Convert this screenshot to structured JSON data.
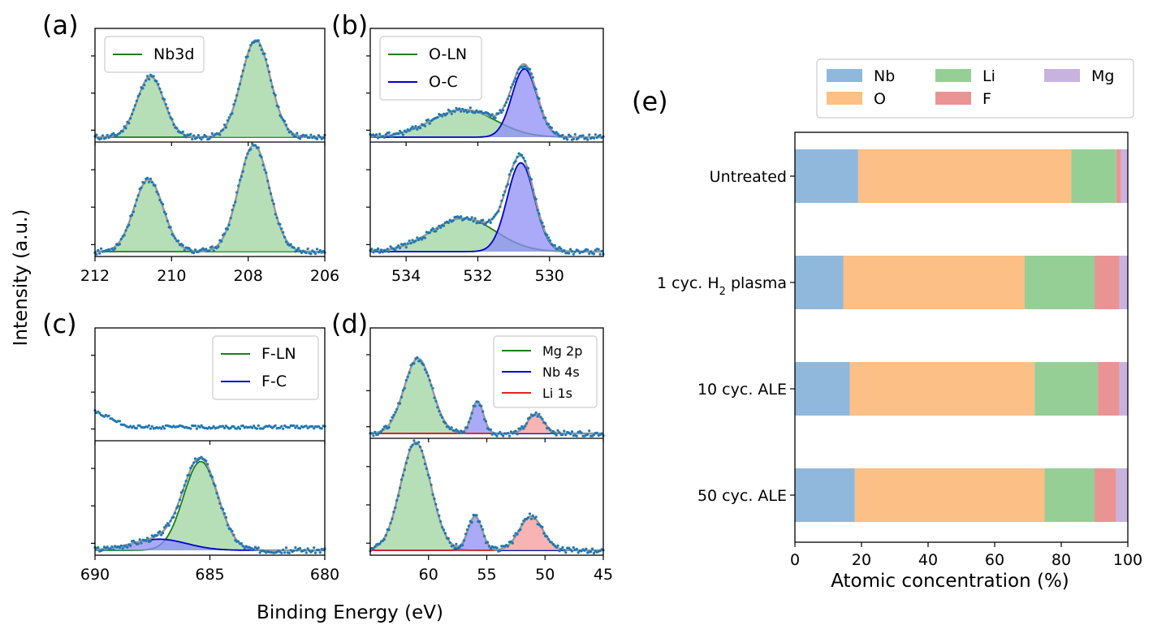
{
  "figure": {
    "shared_ylabel": "Intensity (a.u.)",
    "shared_xlabel": "Binding Energy (eV)"
  },
  "colors": {
    "green_line": "#1a7f1a",
    "green_fill": "#9fd49f",
    "blue_line": "#0000cc",
    "blue_fill": "#8e8ef5",
    "red_line": "#e82020",
    "red_fill": "#f59a9a",
    "envelope": "#999999",
    "dots": "#1f77b4",
    "bar_nb": "#8fb8dc",
    "bar_o": "#fcbf85",
    "bar_li": "#95cf95",
    "bar_f": "#e99494",
    "bar_mg": "#c8b3df"
  },
  "chart_data": [
    {
      "id": "a",
      "letter": "(a)",
      "type": "line",
      "xlim": [
        212,
        206
      ],
      "xticks": [
        212,
        210,
        208,
        206
      ],
      "legend": [
        "Nb3d"
      ],
      "top": {
        "peaks": [
          {
            "center": 210.55,
            "height": 0.55,
            "width": 0.35,
            "comp": 0
          },
          {
            "center": 207.8,
            "height": 0.88,
            "width": 0.38,
            "comp": 0
          }
        ]
      },
      "bottom": {
        "peaks": [
          {
            "center": 210.6,
            "height": 0.65,
            "width": 0.38,
            "comp": 0
          },
          {
            "center": 207.85,
            "height": 0.96,
            "width": 0.4,
            "comp": 0
          }
        ]
      }
    },
    {
      "id": "b",
      "letter": "(b)",
      "type": "line",
      "xlim": [
        535,
        528.5
      ],
      "xticks": [
        534,
        532,
        530
      ],
      "legend": [
        "O-LN",
        "O-C"
      ],
      "top": {
        "peaks": [
          {
            "center": 532.4,
            "height": 0.25,
            "width": 0.9,
            "comp": 0
          },
          {
            "center": 530.7,
            "height": 0.62,
            "width": 0.35,
            "comp": 1
          }
        ]
      },
      "bottom": {
        "peaks": [
          {
            "center": 532.4,
            "height": 0.3,
            "width": 0.9,
            "comp": 0
          },
          {
            "center": 530.8,
            "height": 0.8,
            "width": 0.38,
            "comp": 1
          }
        ]
      }
    },
    {
      "id": "c",
      "letter": "(c)",
      "type": "line",
      "xlim": [
        690,
        680
      ],
      "xticks": [
        690,
        685,
        680
      ],
      "legend": [
        "F-LN",
        "F-C"
      ],
      "top": {
        "noise_only": true
      },
      "bottom": {
        "peaks": [
          {
            "center": 685.4,
            "height": 0.8,
            "width": 0.75,
            "comp": 0
          },
          {
            "center": 687.2,
            "height": 0.1,
            "width": 1.2,
            "comp": 1
          }
        ]
      }
    },
    {
      "id": "d",
      "letter": "(d)",
      "type": "line",
      "xlim": [
        65,
        45
      ],
      "xticks": [
        60,
        55,
        50,
        45
      ],
      "legend": [
        "Mg 2p",
        "Nb 4s",
        "Li 1s"
      ],
      "top": {
        "peaks": [
          {
            "center": 60.9,
            "height": 0.7,
            "width": 1.2,
            "comp": 0
          },
          {
            "center": 55.8,
            "height": 0.3,
            "width": 0.5,
            "comp": 1
          },
          {
            "center": 50.8,
            "height": 0.18,
            "width": 0.7,
            "comp": 2
          }
        ]
      },
      "bottom": {
        "peaks": [
          {
            "center": 61.1,
            "height": 0.95,
            "width": 1.3,
            "comp": 0
          },
          {
            "center": 56.0,
            "height": 0.3,
            "width": 0.6,
            "comp": 1
          },
          {
            "center": 51.2,
            "height": 0.3,
            "width": 1.0,
            "comp": 2
          }
        ]
      }
    },
    {
      "id": "e",
      "letter": "(e)",
      "type": "bar",
      "orientation": "horizontal",
      "stacked": true,
      "xlabel": "Atomic concentration (%)",
      "xlim": [
        0,
        100
      ],
      "xticks": [
        0,
        20,
        40,
        60,
        80,
        100
      ],
      "categories": [
        "Untreated",
        "1 cyc. H",
        "10 cyc. ALE",
        "50 cyc. ALE"
      ],
      "category_suffix": {
        "sub": "2",
        "rest": " plasma"
      },
      "series": [
        {
          "name": "Nb",
          "values": [
            19,
            14.5,
            16.5,
            18
          ]
        },
        {
          "name": "O",
          "values": [
            64,
            54.5,
            55.5,
            57
          ]
        },
        {
          "name": "Li",
          "values": [
            13.5,
            21,
            19,
            15
          ]
        },
        {
          "name": "F",
          "values": [
            1.5,
            7.5,
            6.5,
            6.5
          ]
        },
        {
          "name": "Mg",
          "values": [
            2,
            2.5,
            2.5,
            3.5
          ]
        }
      ],
      "legend": "top"
    }
  ]
}
